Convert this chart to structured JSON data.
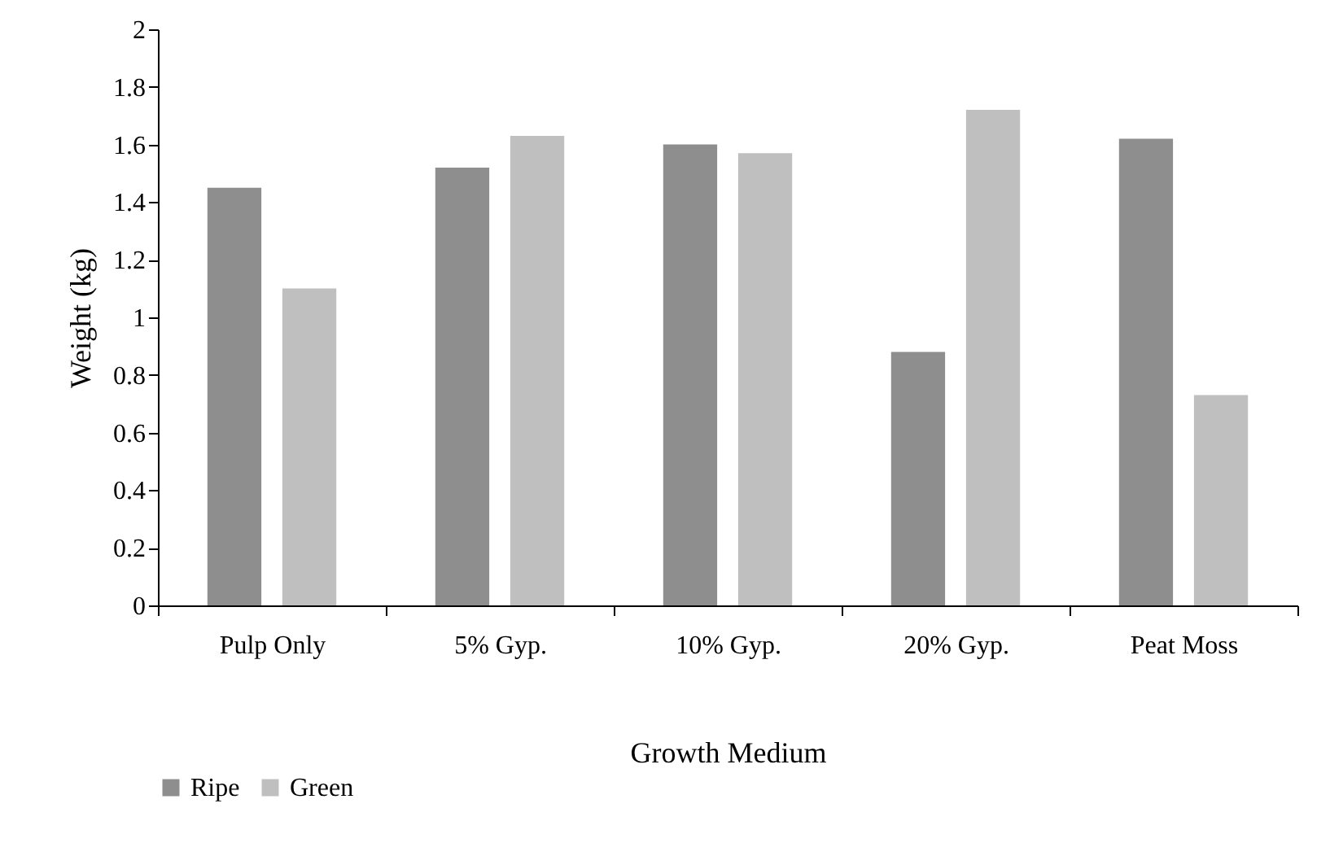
{
  "chart_data": {
    "type": "bar",
    "xlabel": "Growth Medium",
    "ylabel": "Weight (kg)",
    "categories": [
      "Pulp Only",
      "5% Gyp.",
      "10% Gyp.",
      "20% Gyp.",
      "Peat Moss"
    ],
    "series": [
      {
        "name": "Ripe",
        "color": "#8e8e8e",
        "values": [
          1.45,
          1.52,
          1.6,
          0.88,
          1.62
        ]
      },
      {
        "name": "Green",
        "color": "#bfbfbf",
        "values": [
          1.1,
          1.63,
          1.57,
          1.72,
          0.73
        ]
      }
    ],
    "ylim": [
      0,
      2
    ],
    "yticks": [
      0,
      0.2,
      0.4,
      0.6,
      0.8,
      1,
      1.2,
      1.4,
      1.6,
      1.8,
      2
    ],
    "grid": false,
    "legend": "bottom"
  }
}
